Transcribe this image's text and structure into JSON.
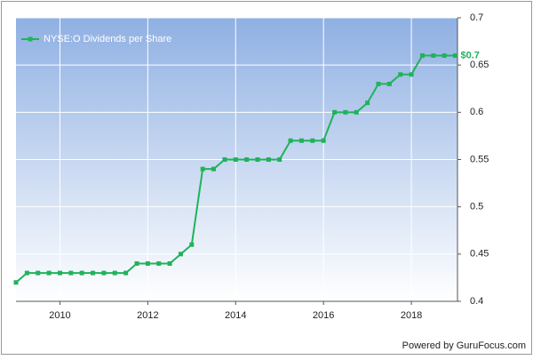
{
  "chart_data": {
    "type": "line",
    "x": [
      2009,
      2009.25,
      2009.5,
      2009.75,
      2010,
      2010.25,
      2010.5,
      2010.75,
      2011,
      2011.25,
      2011.5,
      2011.75,
      2012,
      2012.25,
      2012.5,
      2012.75,
      2013,
      2013.25,
      2013.5,
      2013.75,
      2014,
      2014.25,
      2014.5,
      2014.75,
      2015,
      2015.25,
      2015.5,
      2015.75,
      2016,
      2016.25,
      2016.5,
      2016.75,
      2017,
      2017.25,
      2017.5,
      2017.75,
      2018,
      2018.25,
      2018.5,
      2018.75,
      2019
    ],
    "series": [
      {
        "name": "NYSE:O Dividends per Share",
        "color": "#1fb35a",
        "values": [
          0.42,
          0.43,
          0.43,
          0.43,
          0.43,
          0.43,
          0.43,
          0.43,
          0.43,
          0.43,
          0.43,
          0.44,
          0.44,
          0.44,
          0.44,
          0.45,
          0.46,
          0.54,
          0.54,
          0.55,
          0.55,
          0.55,
          0.55,
          0.55,
          0.55,
          0.57,
          0.57,
          0.57,
          0.57,
          0.6,
          0.6,
          0.6,
          0.61,
          0.63,
          0.63,
          0.64,
          0.64,
          0.66,
          0.66,
          0.66,
          0.66
        ],
        "value_labels": [
          null,
          null,
          null,
          null,
          null,
          null,
          null,
          null,
          null,
          null,
          null,
          null,
          null,
          null,
          null,
          null,
          null,
          null,
          null,
          null,
          null,
          null,
          null,
          null,
          null,
          null,
          null,
          null,
          null,
          null,
          null,
          null,
          null,
          null,
          null,
          null,
          null,
          null,
          null,
          null,
          "$0.7"
        ]
      }
    ],
    "xlim": [
      2009,
      2019.05
    ],
    "xticks": [
      2010,
      2012,
      2014,
      2016,
      2018
    ],
    "ylim": [
      0.4,
      0.7
    ],
    "yticks": [
      0.4,
      0.45,
      0.5,
      0.55,
      0.6,
      0.65,
      0.7
    ],
    "grid": true,
    "legend": "upper left",
    "footer": "Powered by GuruFocus.com"
  }
}
